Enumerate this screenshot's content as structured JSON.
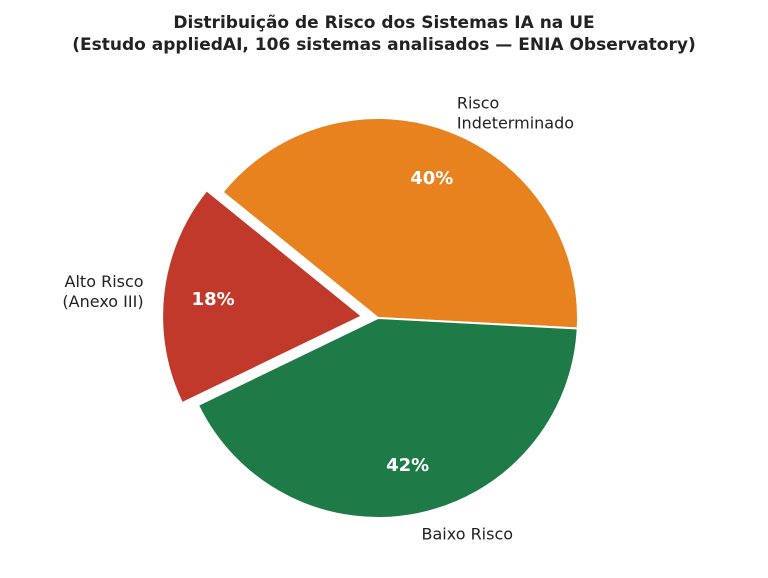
{
  "chart_data": {
    "type": "pie",
    "title": "Distribuição de Risco dos Sistemas IA na UE\n(Estudo appliedAI, 106 sistemas analisados — ENIA Observatory)",
    "categories": [
      "Risco\nIndeterminado",
      "Alto Risco\n(Anexo III)",
      "Baixo Risco"
    ],
    "values": [
      40,
      18,
      42
    ],
    "value_labels": [
      "40%",
      "18%",
      "42%"
    ],
    "colors": [
      "#e8821e",
      "#c0392b",
      "#1e7b48"
    ],
    "explode": [
      0,
      0.08,
      0
    ]
  }
}
